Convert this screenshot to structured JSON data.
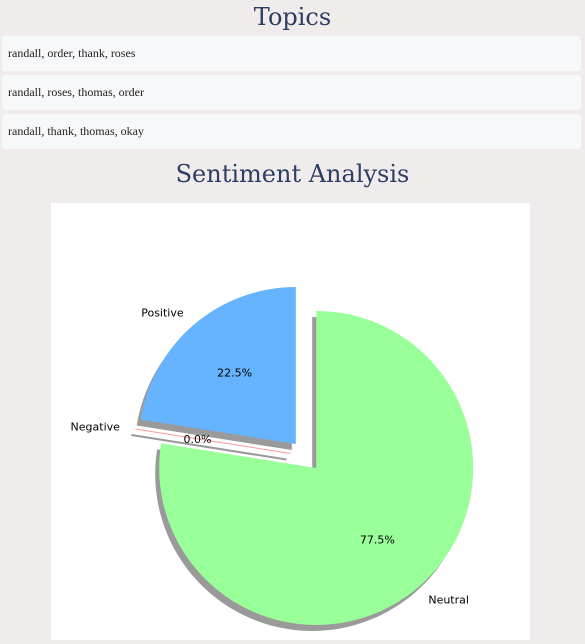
{
  "topics": {
    "title": "Topics",
    "items": [
      "randall, order, thank, roses",
      "randall, roses, thomas, order",
      "randall, thank, thomas, okay"
    ]
  },
  "sentiment": {
    "title": "Sentiment Analysis"
  },
  "chart_data": {
    "type": "pie",
    "title": "",
    "categories": [
      "Positive",
      "Negative",
      "Neutral"
    ],
    "values": [
      22.5,
      0.0,
      77.5
    ],
    "value_labels": [
      "22.5%",
      "0.0%",
      "77.5%"
    ],
    "colors": [
      "#66b3ff",
      "#ff9999",
      "#99ff99"
    ],
    "explode": [
      0.1,
      0.1,
      0.1
    ],
    "shadow": true,
    "start_angle_deg": 90,
    "legend": "none"
  }
}
